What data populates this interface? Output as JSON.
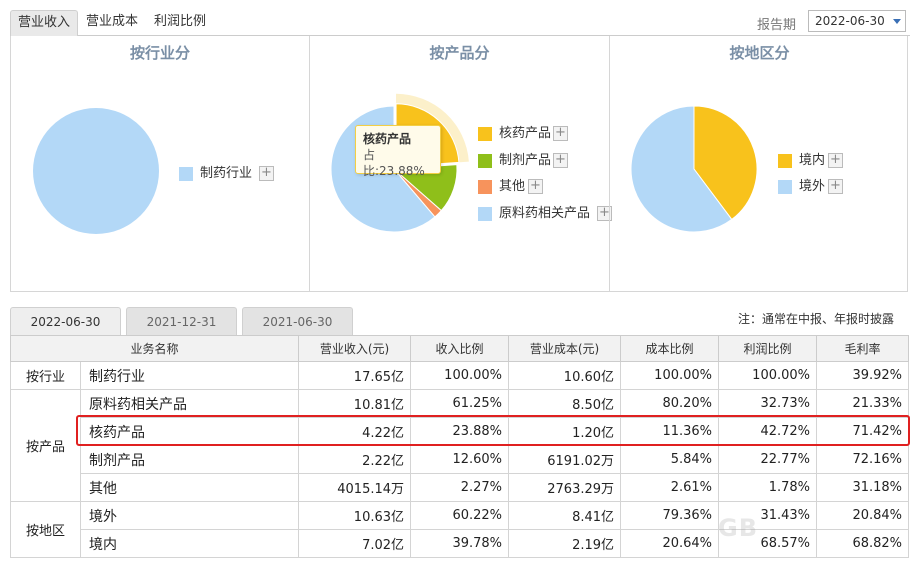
{
  "top_tabs": [
    "营业收入",
    "营业成本",
    "利润比例"
  ],
  "period": {
    "label": "报告期",
    "value": "2022-06-30"
  },
  "panels": [
    {
      "title": "按行业分",
      "legend": [
        {
          "label": "制药行业",
          "color": "#b3d8f7"
        }
      ]
    },
    {
      "title": "按产品分",
      "legend": [
        {
          "label": "核药产品",
          "color": "#f8c21c"
        },
        {
          "label": "制剂产品",
          "color": "#8fbf1a"
        },
        {
          "label": "其他",
          "color": "#f7935c"
        },
        {
          "label": "原料药相关产品",
          "color": "#b3d8f7"
        }
      ],
      "tooltip": {
        "name": "核药产品",
        "value": "占比:23.88%"
      }
    },
    {
      "title": "按地区分",
      "legend": [
        {
          "label": "境内",
          "color": "#f8c21c"
        },
        {
          "label": "境外",
          "color": "#b3d8f7"
        }
      ]
    }
  ],
  "chart_data": [
    {
      "type": "pie",
      "title": "按行业分",
      "categories": [
        "制药行业"
      ],
      "values": [
        100.0
      ]
    },
    {
      "type": "pie",
      "title": "按产品分",
      "categories": [
        "核药产品",
        "制剂产品",
        "其他",
        "原料药相关产品"
      ],
      "values": [
        23.88,
        12.6,
        2.27,
        61.25
      ]
    },
    {
      "type": "pie",
      "title": "按地区分",
      "categories": [
        "境内",
        "境外"
      ],
      "values": [
        39.78,
        60.22
      ]
    }
  ],
  "date_tabs": [
    "2022-06-30",
    "2021-12-31",
    "2021-06-30"
  ],
  "note": "注：通常在中报、年报时披露",
  "table": {
    "headers": [
      "业务名称",
      "营业收入(元)",
      "收入比例",
      "营业成本(元)",
      "成本比例",
      "利润比例",
      "毛利率"
    ],
    "groups": [
      {
        "label": "按行业",
        "rows": [
          [
            "制药行业",
            "17.65亿",
            "100.00%",
            "10.60亿",
            "100.00%",
            "100.00%",
            "39.92%"
          ]
        ]
      },
      {
        "label": "按产品",
        "rows": [
          [
            "原料药相关产品",
            "10.81亿",
            "61.25%",
            "8.50亿",
            "80.20%",
            "32.73%",
            "21.33%"
          ],
          [
            "核药产品",
            "4.22亿",
            "23.88%",
            "1.20亿",
            "11.36%",
            "42.72%",
            "71.42%"
          ],
          [
            "制剂产品",
            "2.22亿",
            "12.60%",
            "6191.02万",
            "5.84%",
            "22.77%",
            "72.16%"
          ],
          [
            "其他",
            "4015.14万",
            "2.27%",
            "2763.29万",
            "2.61%",
            "1.78%",
            "31.18%"
          ]
        ]
      },
      {
        "label": "按地区",
        "rows": [
          [
            "境外",
            "10.63亿",
            "60.22%",
            "8.41亿",
            "79.36%",
            "31.43%",
            "20.84%"
          ],
          [
            "境内",
            "7.02亿",
            "39.78%",
            "2.19亿",
            "20.64%",
            "68.57%",
            "68.82%"
          ]
        ]
      }
    ]
  },
  "watermark": "GB"
}
